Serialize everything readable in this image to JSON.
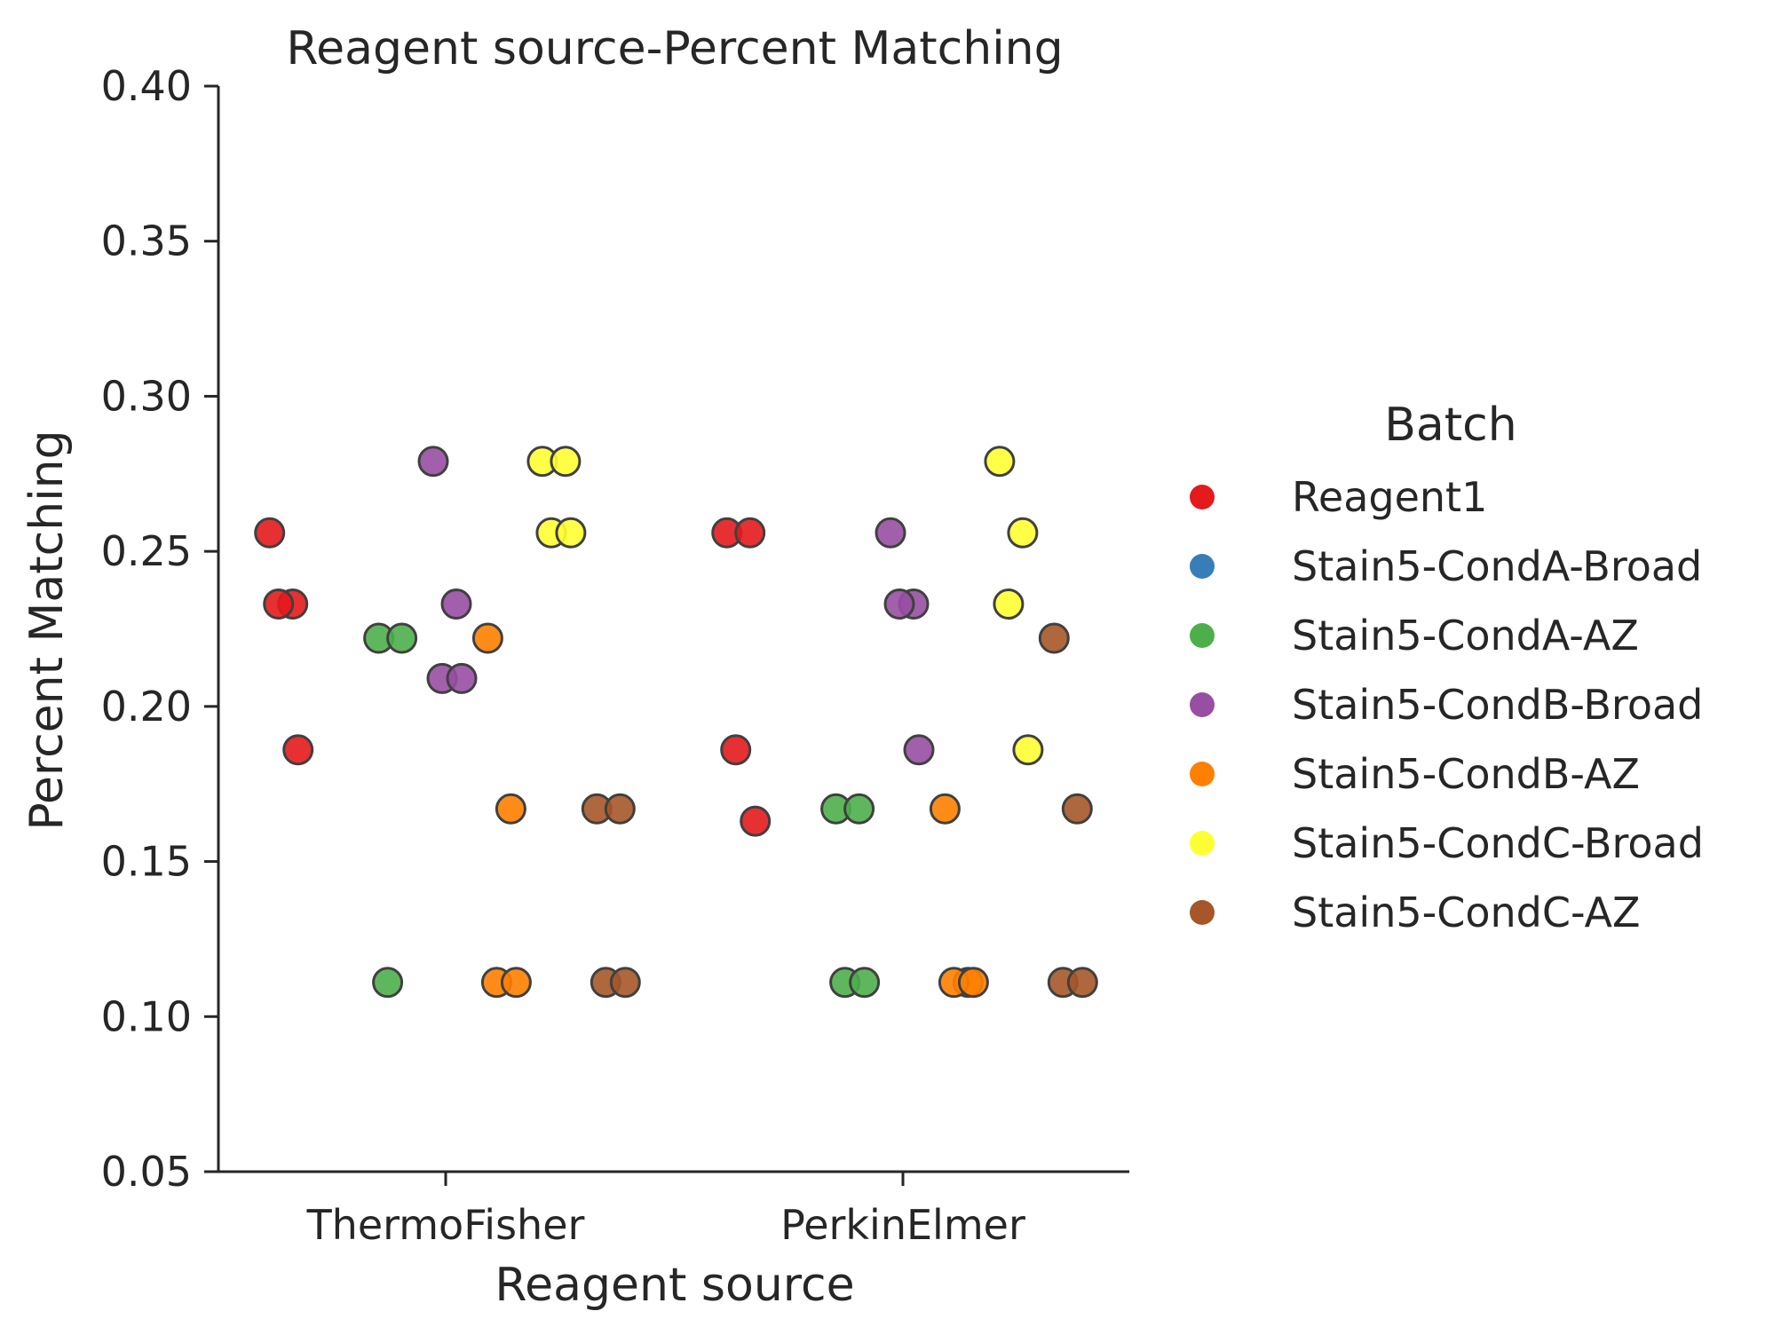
{
  "chart_data": {
    "type": "scatter",
    "title": "Reagent source-Percent Matching",
    "xlabel": "Reagent source",
    "ylabel": "Percent Matching",
    "categories": [
      "ThermoFisher",
      "PerkinElmer"
    ],
    "ylim": [
      0.05,
      0.4
    ],
    "yticks": [
      "0.05",
      "0.10",
      "0.15",
      "0.20",
      "0.25",
      "0.30",
      "0.35",
      "0.40"
    ],
    "grid": false,
    "legend": {
      "title": "Batch",
      "placement": "right"
    },
    "series": [
      {
        "name": "Reagent1",
        "color": "#e41a1c",
        "points": [
          {
            "category": "ThermoFisher",
            "y": 0.256
          },
          {
            "category": "ThermoFisher",
            "y": 0.233
          },
          {
            "category": "ThermoFisher",
            "y": 0.233
          },
          {
            "category": "ThermoFisher",
            "y": 0.186
          },
          {
            "category": "PerkinElmer",
            "y": 0.256
          },
          {
            "category": "PerkinElmer",
            "y": 0.256
          },
          {
            "category": "PerkinElmer",
            "y": 0.186
          },
          {
            "category": "PerkinElmer",
            "y": 0.163
          }
        ]
      },
      {
        "name": "Stain5-CondA-Broad",
        "color": "#377eb8",
        "points": []
      },
      {
        "name": "Stain5-CondA-AZ",
        "color": "#4daf4a",
        "points": [
          {
            "category": "ThermoFisher",
            "y": 0.222
          },
          {
            "category": "ThermoFisher",
            "y": 0.222
          },
          {
            "category": "ThermoFisher",
            "y": 0.111
          },
          {
            "category": "PerkinElmer",
            "y": 0.167
          },
          {
            "category": "PerkinElmer",
            "y": 0.167
          },
          {
            "category": "PerkinElmer",
            "y": 0.111
          },
          {
            "category": "PerkinElmer",
            "y": 0.111
          }
        ]
      },
      {
        "name": "Stain5-CondB-Broad",
        "color": "#984ea3",
        "points": [
          {
            "category": "ThermoFisher",
            "y": 0.279
          },
          {
            "category": "ThermoFisher",
            "y": 0.233
          },
          {
            "category": "ThermoFisher",
            "y": 0.209
          },
          {
            "category": "ThermoFisher",
            "y": 0.209
          },
          {
            "category": "PerkinElmer",
            "y": 0.256
          },
          {
            "category": "PerkinElmer",
            "y": 0.233
          },
          {
            "category": "PerkinElmer",
            "y": 0.233
          },
          {
            "category": "PerkinElmer",
            "y": 0.186
          }
        ]
      },
      {
        "name": "Stain5-CondB-AZ",
        "color": "#ff7f00",
        "points": [
          {
            "category": "ThermoFisher",
            "y": 0.222
          },
          {
            "category": "ThermoFisher",
            "y": 0.167
          },
          {
            "category": "ThermoFisher",
            "y": 0.111
          },
          {
            "category": "ThermoFisher",
            "y": 0.111
          },
          {
            "category": "PerkinElmer",
            "y": 0.167
          },
          {
            "category": "PerkinElmer",
            "y": 0.111
          },
          {
            "category": "PerkinElmer",
            "y": 0.111
          },
          {
            "category": "PerkinElmer",
            "y": 0.111
          }
        ]
      },
      {
        "name": "Stain5-CondC-Broad",
        "color": "#ffff33",
        "points": [
          {
            "category": "ThermoFisher",
            "y": 0.279
          },
          {
            "category": "ThermoFisher",
            "y": 0.279
          },
          {
            "category": "ThermoFisher",
            "y": 0.256
          },
          {
            "category": "ThermoFisher",
            "y": 0.256
          },
          {
            "category": "PerkinElmer",
            "y": 0.279
          },
          {
            "category": "PerkinElmer",
            "y": 0.256
          },
          {
            "category": "PerkinElmer",
            "y": 0.233
          },
          {
            "category": "PerkinElmer",
            "y": 0.186
          }
        ]
      },
      {
        "name": "Stain5-CondC-AZ",
        "color": "#a65628",
        "points": [
          {
            "category": "ThermoFisher",
            "y": 0.167
          },
          {
            "category": "ThermoFisher",
            "y": 0.167
          },
          {
            "category": "ThermoFisher",
            "y": 0.111
          },
          {
            "category": "ThermoFisher",
            "y": 0.111
          },
          {
            "category": "PerkinElmer",
            "y": 0.222
          },
          {
            "category": "PerkinElmer",
            "y": 0.167
          },
          {
            "category": "PerkinElmer",
            "y": 0.111
          },
          {
            "category": "PerkinElmer",
            "y": 0.111
          }
        ]
      }
    ]
  }
}
